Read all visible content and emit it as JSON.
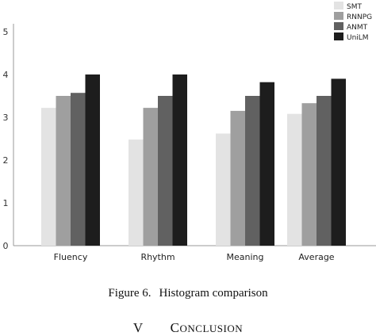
{
  "chart_data": {
    "type": "bar",
    "categories": [
      "Fluency",
      "Rhythm",
      "Meaning",
      "Average"
    ],
    "series": [
      {
        "name": "SMT",
        "color": "#e3e3e3",
        "values": [
          3.22,
          2.48,
          2.62,
          3.08
        ]
      },
      {
        "name": "RNNPG",
        "color": "#9f9f9f",
        "values": [
          3.5,
          3.22,
          3.15,
          3.33
        ]
      },
      {
        "name": "ANMT",
        "color": "#616161",
        "values": [
          3.57,
          3.5,
          3.5,
          3.5
        ]
      },
      {
        "name": "UniLM",
        "color": "#1d1d1d",
        "values": [
          4.0,
          4.0,
          3.82,
          3.9
        ]
      }
    ],
    "ylim": [
      0,
      5
    ],
    "yticks": [
      "0",
      "1",
      "2",
      "3",
      "4",
      "5"
    ],
    "grid": false,
    "legend_position": "top-right"
  },
  "figure": {
    "label": "Figure 6.",
    "caption": "Histogram comparison"
  },
  "section": {
    "number": "V",
    "initial": "C",
    "rest": "ONCLUSION"
  }
}
